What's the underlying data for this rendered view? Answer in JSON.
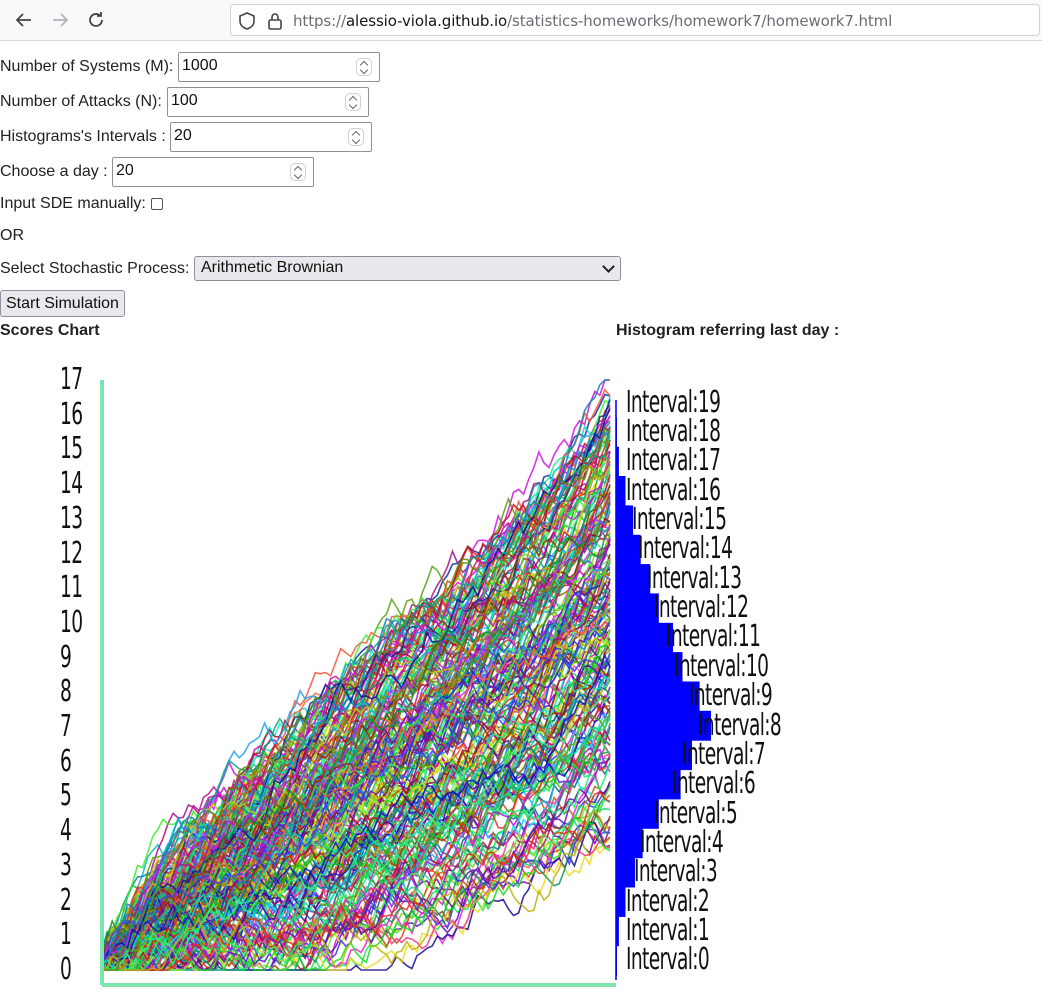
{
  "browser": {
    "url_scheme": "https://",
    "url_host": "alessio-viola.github.io",
    "url_path": "/statistics-homeworks/homework7/homework7.html",
    "icons": [
      "back-arrow-icon",
      "forward-arrow-icon",
      "reload-icon",
      "shield-icon",
      "lock-icon"
    ]
  },
  "form": {
    "systems_label": "Number of Systems (M):",
    "systems_value": "1000",
    "attacks_label": "Number of Attacks (N):",
    "attacks_value": "100",
    "intervals_label": "Histograms's Intervals :",
    "intervals_value": "20",
    "day_label": "Choose a day :",
    "day_value": "20",
    "sde_label": "Input SDE manually:",
    "or_label": "OR",
    "process_label": "Select Stochastic Process:",
    "process_value": "Arithmetic Brownian",
    "start_label": "Start Simulation"
  },
  "titles": {
    "scores": "Scores Chart",
    "histogram": "Histogram referring last day :"
  },
  "colors": {
    "axis": "#7de6b0",
    "histogram_bar": "#0000ff",
    "histogram_axis": "#3a3aff"
  },
  "chart_data": [
    {
      "type": "line",
      "title": "Scores Chart",
      "ylim": [
        0,
        17
      ],
      "y_ticks": [
        "0",
        "1",
        "2",
        "3",
        "4",
        "5",
        "6",
        "7",
        "8",
        "9",
        "10",
        "11",
        "12",
        "13",
        "14",
        "15",
        "16",
        "17"
      ],
      "n_series": 1000,
      "n_steps": 100,
      "envelope": {
        "x": [
          0,
          10,
          20,
          30,
          40,
          50,
          60,
          70,
          80,
          90,
          100
        ],
        "upper": [
          0.2,
          2.5,
          4.2,
          5.8,
          7.4,
          8.9,
          10.3,
          11.6,
          13.1,
          14.6,
          16.8
        ],
        "lower": [
          0,
          0,
          0,
          0,
          0.1,
          0.5,
          0.9,
          1.5,
          2.2,
          2.8,
          3.3
        ]
      },
      "grid": false
    },
    {
      "type": "bar",
      "orientation": "horizontal",
      "title": "Histogram referring last day :",
      "categories": [
        "Interval:0",
        "Interval:1",
        "Interval:2",
        "Interval:3",
        "Interval:4",
        "Interval:5",
        "Interval:6",
        "Interval:7",
        "Interval:8",
        "Interval:9",
        "Interval:10",
        "Interval:11",
        "Interval:12",
        "Interval:13",
        "Interval:14",
        "Interval:15",
        "Interval:16",
        "Interval:17",
        "Interval:18",
        "Interval:19"
      ],
      "values": [
        1,
        3,
        10,
        20,
        28,
        45,
        68,
        80,
        100,
        88,
        70,
        60,
        45,
        36,
        26,
        18,
        10,
        3,
        1,
        0
      ]
    }
  ]
}
